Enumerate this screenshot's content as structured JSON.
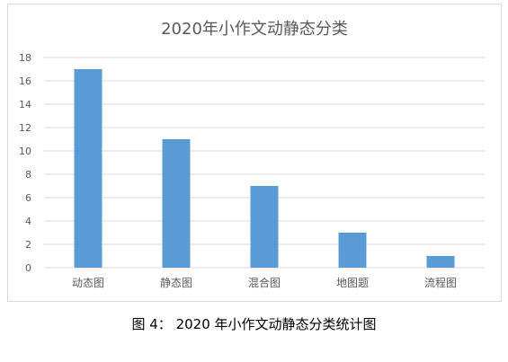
{
  "chart_data": {
    "type": "bar",
    "title": "2020年小作文动静态分类",
    "categories": [
      "动态图",
      "静态图",
      "混合图",
      "地图题",
      "流程图"
    ],
    "values": [
      17,
      11,
      7,
      3,
      1
    ],
    "xlabel": "",
    "ylabel": "",
    "ylim": [
      0,
      18
    ],
    "yticks": [
      0,
      2,
      4,
      6,
      8,
      10,
      12,
      14,
      16,
      18
    ],
    "grid": true,
    "legend": "none",
    "bar_color": "#5b9bd5",
    "grid_color": "#d9d9d9"
  },
  "caption": "图 4：  2020 年小作文动静态分类统计图"
}
